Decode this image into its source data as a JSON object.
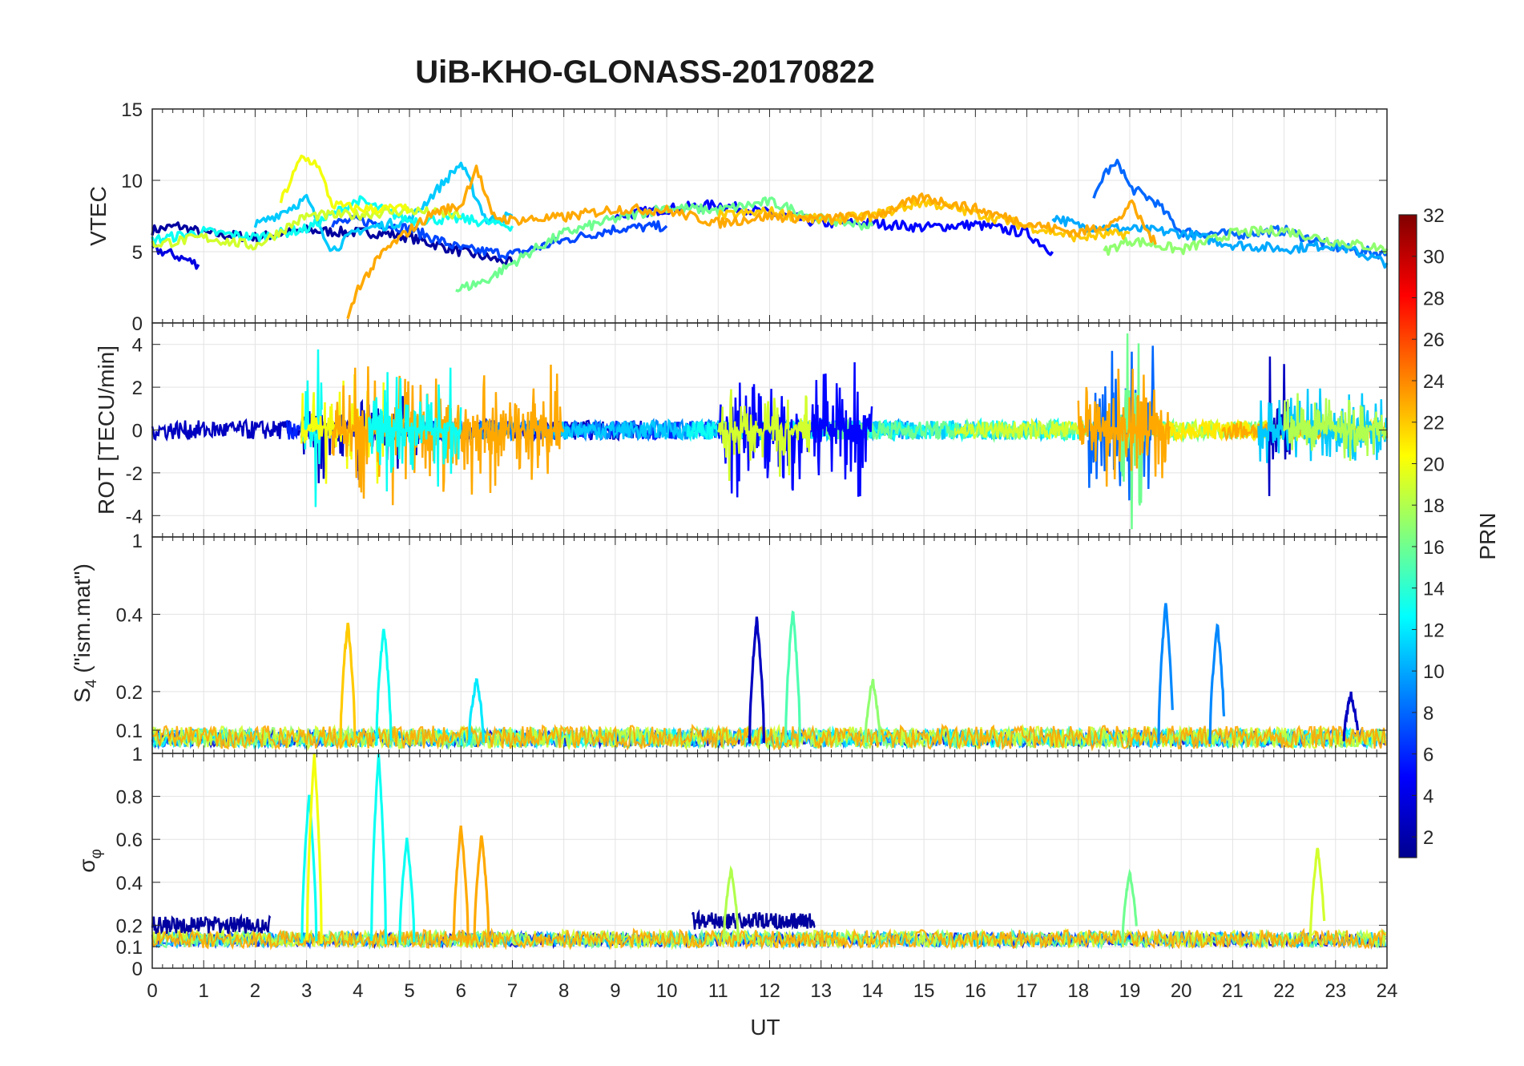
{
  "chart_data": {
    "type": "line",
    "title": "UiB-KHO-GLONASS-20170822",
    "xlabel": "UT",
    "x_ticks": [
      "0",
      "1",
      "2",
      "3",
      "4",
      "5",
      "6",
      "7",
      "8",
      "9",
      "10",
      "11",
      "12",
      "13",
      "14",
      "15",
      "16",
      "17",
      "18",
      "19",
      "20",
      "21",
      "22",
      "23",
      "24"
    ],
    "xlim": [
      0,
      24
    ],
    "grid": true,
    "panels": [
      {
        "ylabel": "VTEC",
        "ylim": [
          0,
          15
        ],
        "y_ticks": [
          0,
          5,
          10,
          15
        ],
        "series": [
          {
            "prn": 2,
            "points": [
              [
                0,
                6.5
              ],
              [
                0.5,
                6.8
              ],
              [
                1,
                6.3
              ],
              [
                2,
                6.0
              ],
              [
                3,
                6.5
              ],
              [
                3.5,
                6.4
              ],
              [
                4.5,
                6.3
              ],
              [
                5,
                6.0
              ],
              [
                6,
                5.0
              ],
              [
                7,
                4.2
              ]
            ]
          },
          {
            "prn": 4,
            "points": [
              [
                0,
                5.2
              ],
              [
                0.4,
                4.8
              ],
              [
                0.9,
                4.1
              ]
            ]
          },
          {
            "prn": 5,
            "points": [
              [
                9,
                7.5
              ],
              [
                10,
                8.0
              ],
              [
                11,
                8.3
              ],
              [
                12,
                7.7
              ],
              [
                13,
                7.0
              ],
              [
                14,
                7.0
              ],
              [
                15,
                6.7
              ],
              [
                16,
                6.9
              ],
              [
                17,
                6.3
              ],
              [
                17.5,
                5.0
              ]
            ]
          },
          {
            "prn": 7,
            "points": [
              [
                3.5,
                7.0
              ],
              [
                4,
                7.2
              ],
              [
                5,
                6.6
              ],
              [
                6,
                5.2
              ],
              [
                7,
                4.8
              ],
              [
                8,
                5.8
              ],
              [
                9,
                6.6
              ],
              [
                10,
                6.8
              ]
            ]
          },
          {
            "prn": 8,
            "points": [
              [
                18.3,
                8.5
              ],
              [
                18.5,
                10.5
              ],
              [
                18.8,
                11.2
              ],
              [
                19,
                9.5
              ],
              [
                19.5,
                8.5
              ],
              [
                20,
                6.4
              ],
              [
                21,
                6.2
              ],
              [
                22,
                6.5
              ],
              [
                23,
                5.3
              ],
              [
                24,
                4.8
              ]
            ]
          },
          {
            "prn": 10,
            "points": [
              [
                17.5,
                7.5
              ],
              [
                18,
                6.8
              ],
              [
                19,
                6.6
              ],
              [
                20,
                6.3
              ],
              [
                21,
                5.5
              ],
              [
                22,
                5.2
              ],
              [
                23,
                5.5
              ],
              [
                24,
                4.2
              ]
            ]
          },
          {
            "prn": 11,
            "points": [
              [
                2,
                6.8
              ],
              [
                3,
                8.7
              ],
              [
                3.5,
                5.1
              ],
              [
                4,
                6.5
              ],
              [
                5,
                7.2
              ],
              [
                6,
                11.2
              ],
              [
                6.5,
                7.2
              ],
              [
                7,
                7.5
              ]
            ]
          },
          {
            "prn": 13,
            "points": [
              [
                0,
                5.8
              ],
              [
                1,
                6.4
              ],
              [
                2,
                6.0
              ],
              [
                3,
                6.6
              ],
              [
                4,
                8.6
              ],
              [
                5,
                7.2
              ],
              [
                6,
                7.3
              ],
              [
                7,
                6.8
              ]
            ]
          },
          {
            "prn": 16,
            "points": [
              [
                5.9,
                2.3
              ],
              [
                6.5,
                3.0
              ],
              [
                7,
                4.2
              ],
              [
                7.5,
                5.3
              ],
              [
                8,
                6.3
              ],
              [
                9,
                7.3
              ],
              [
                10,
                8.1
              ],
              [
                11,
                7.9
              ],
              [
                12,
                8.5
              ],
              [
                13,
                7.3
              ],
              [
                14,
                6.8
              ]
            ]
          },
          {
            "prn": 17,
            "points": [
              [
                18.5,
                5.0
              ],
              [
                19,
                5.8
              ],
              [
                19.5,
                5.5
              ],
              [
                20,
                5.1
              ],
              [
                21,
                6.3
              ],
              [
                22,
                6.5
              ],
              [
                23,
                5.7
              ],
              [
                24,
                5.2
              ]
            ]
          },
          {
            "prn": 19,
            "points": [
              [
                0,
                5.5
              ],
              [
                1,
                6.0
              ],
              [
                2,
                5.4
              ],
              [
                3,
                7.5
              ],
              [
                4,
                7.6
              ],
              [
                5,
                7.9
              ],
              [
                6,
                7.5
              ]
            ]
          },
          {
            "prn": 20,
            "points": [
              [
                2.5,
                8.5
              ],
              [
                2.9,
                11.6
              ],
              [
                3.2,
                11.2
              ],
              [
                3.5,
                8.3
              ],
              [
                4,
                8.0
              ],
              [
                5,
                8.0
              ]
            ]
          },
          {
            "prn": 22,
            "points": [
              [
                11,
                7.5
              ],
              [
                12,
                7.8
              ],
              [
                13,
                7.2
              ],
              [
                14,
                7.5
              ],
              [
                15,
                8.5
              ],
              [
                16,
                7.7
              ],
              [
                17,
                6.8
              ],
              [
                18,
                6.0
              ],
              [
                19,
                6.3
              ]
            ]
          },
          {
            "prn": 23,
            "points": [
              [
                3.8,
                0.2
              ],
              [
                4,
                2.5
              ],
              [
                4.5,
                5.0
              ],
              [
                5,
                6.5
              ],
              [
                5.5,
                7.8
              ],
              [
                6,
                8.2
              ],
              [
                6.3,
                11.0
              ],
              [
                6.6,
                7.5
              ],
              [
                7,
                7.2
              ],
              [
                8,
                7.4
              ],
              [
                9,
                8.0
              ],
              [
                10,
                7.9
              ],
              [
                11,
                7.0
              ],
              [
                12,
                7.5
              ],
              [
                13,
                7.3
              ],
              [
                14,
                7.5
              ],
              [
                15,
                8.8
              ],
              [
                16,
                8.0
              ],
              [
                17,
                7.0
              ],
              [
                18,
                6.3
              ],
              [
                18.8,
                7.2
              ],
              [
                19,
                8.5
              ],
              [
                19.5,
                5.5
              ]
            ]
          }
        ]
      },
      {
        "ylabel": "ROT [TECU/min]",
        "ylim": [
          -5,
          5
        ],
        "y_ticks": [
          -4,
          -2,
          0,
          2,
          4
        ],
        "bursts": [
          {
            "prn": 3,
            "start": 2.9,
            "end": 5.2,
            "amplitude": 2.5
          },
          {
            "prn": 13,
            "start": 2.9,
            "end": 3.3,
            "amplitude": 5.5
          },
          {
            "prn": 20,
            "start": 2.9,
            "end": 4.5,
            "amplitude": 3.0
          },
          {
            "prn": 23,
            "start": 3.5,
            "end": 8.0,
            "amplitude": 3.8
          },
          {
            "prn": 13,
            "start": 4.2,
            "end": 6.0,
            "amplitude": 3.2
          },
          {
            "prn": 5,
            "start": 11.0,
            "end": 14.0,
            "amplitude": 3.5
          },
          {
            "prn": 19,
            "start": 11.0,
            "end": 12.8,
            "amplitude": 2.5
          },
          {
            "prn": 8,
            "start": 18.2,
            "end": 19.5,
            "amplitude": 4.3
          },
          {
            "prn": 16,
            "start": 18.8,
            "end": 19.3,
            "amplitude": 5.0
          },
          {
            "prn": 23,
            "start": 18.0,
            "end": 19.8,
            "amplitude": 3.3
          },
          {
            "prn": 3,
            "start": 21.7,
            "end": 22.2,
            "amplitude": 4.0
          },
          {
            "prn": 11,
            "start": 21.5,
            "end": 24.0,
            "amplitude": 2.5
          },
          {
            "prn": 18,
            "start": 22.0,
            "end": 24.0,
            "amplitude": 2.0
          }
        ]
      },
      {
        "ylabel_main": "S",
        "ylabel_sub": "4",
        "ylabel_rest": " (\"ism.mat\")",
        "ylim": [
          0.04,
          0.6
        ],
        "y_ticks": [
          0.1,
          0.2,
          0.4
        ],
        "top_tick": "1",
        "peaks": [
          {
            "prn": 22,
            "x": 3.8,
            "y": 0.38
          },
          {
            "prn": 13,
            "x": 4.5,
            "y": 0.37
          },
          {
            "prn": 12,
            "x": 6.3,
            "y": 0.23
          },
          {
            "prn": 3,
            "x": 11.75,
            "y": 0.39
          },
          {
            "prn": 15,
            "x": 12.45,
            "y": 0.41
          },
          {
            "prn": 17,
            "x": 14.0,
            "y": 0.23
          },
          {
            "prn": 9,
            "x": 19.7,
            "y": 0.43
          },
          {
            "prn": 9,
            "x": 20.7,
            "y": 0.38
          },
          {
            "prn": 3,
            "x": 23.3,
            "y": 0.19
          }
        ]
      },
      {
        "ylabel": "σ_φ",
        "ylim": [
          0,
          1
        ],
        "y_ticks": [
          0,
          0.1,
          0.2,
          0.4,
          0.6,
          0.8,
          1
        ],
        "peaks": [
          {
            "prn": 13,
            "x": 3.05,
            "y": 0.81
          },
          {
            "prn": 20,
            "x": 3.15,
            "y": 1.0
          },
          {
            "prn": 13,
            "x": 4.4,
            "y": 1.0
          },
          {
            "prn": 13,
            "x": 4.95,
            "y": 0.6
          },
          {
            "prn": 23,
            "x": 6.0,
            "y": 0.66
          },
          {
            "prn": 23,
            "x": 6.4,
            "y": 0.62
          },
          {
            "prn": 18,
            "x": 11.25,
            "y": 0.46
          },
          {
            "prn": 16,
            "x": 19.0,
            "y": 0.45
          },
          {
            "prn": 19,
            "x": 22.65,
            "y": 0.56
          }
        ]
      }
    ],
    "colorbar": {
      "label": "PRN",
      "colormap": "jet",
      "range": [
        1,
        32
      ],
      "ticks": [
        "2",
        "4",
        "6",
        "8",
        "10",
        "12",
        "14",
        "16",
        "18",
        "20",
        "22",
        "24",
        "26",
        "28",
        "30",
        "32"
      ]
    }
  }
}
